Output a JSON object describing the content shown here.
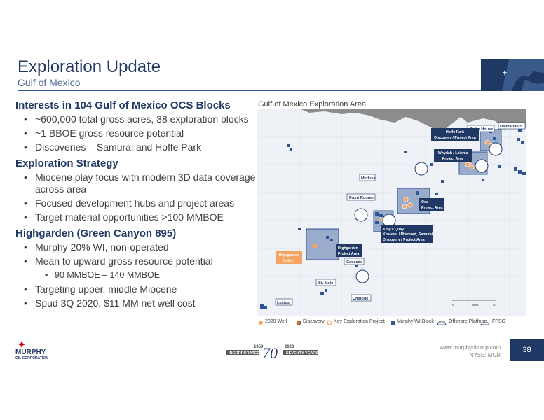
{
  "header": {
    "title": "Exploration Update",
    "subtitle": "Gulf of Mexico"
  },
  "sections": [
    {
      "heading": "Interests in 104 Gulf of Mexico OCS Blocks",
      "bullets": [
        "~600,000 total gross acres, 38 exploration blocks",
        "~1 BBOE gross resource potential",
        "Discoveries – Samurai and Hoffe Park"
      ]
    },
    {
      "heading": "Exploration Strategy",
      "bullets": [
        "Miocene play focus with modern 3D data coverage across area",
        "Focused development hubs and project areas",
        "Target material opportunities >100 MMBOE"
      ]
    },
    {
      "heading": "Highgarden (Green Canyon 895)",
      "bullets": [
        "Murphy 20% WI, non-operated",
        "Mean to upward gross resource potential",
        "Targeting upper, middle Miocene",
        "Spud 3Q 2020, $11 MM net well cost"
      ],
      "sub_bullet": "90 MMBOE – 140 MMBOE"
    }
  ],
  "map": {
    "title": "Gulf of Mexico Exploration Area",
    "labels": {
      "delta_house": "Delta House",
      "dalmatian": "Dalmatian S.",
      "hoffe": "Hoffe Park",
      "hoffe2": "Discovery / Project Area",
      "whydah": "Whydah / Leibniz",
      "whydah2": "Project Area",
      "medusa": "Medusa",
      "front_runner": "Front Runner",
      "oso": "Oso",
      "oso2": "Project Area",
      "kings_quay": "King's Quay",
      "kings2": "Khaleesi / Mormont, Samurai",
      "kings3": "Discovery / Project Area",
      "highgarden": "Highgarden",
      "highgarden2": "Project Area",
      "highgarden_well": "Highgarden",
      "highgarden_well2": "Drilling",
      "cascade": "Cascade",
      "st_malo": "St. Malo",
      "chinook": "Chinook",
      "lucius": "Lucius",
      "scale0": "0",
      "scale_unit": "Miles",
      "scale50": "50"
    }
  },
  "legend": {
    "well": "2020 Well",
    "discovery": "Discovery",
    "key_project": "Key Exploration Project",
    "wi_block": "Murphy WI Block",
    "platform": "Offshore Platform",
    "fpso": "FPSO"
  },
  "footer": {
    "company_line1": "MURPHY",
    "company_line2": "OIL CORPORATION",
    "year_founded": "1950",
    "year_now": "2020",
    "incorporated": "INCORPORATED",
    "seventy": "70",
    "seventy_years": "SEVENTY YEARS",
    "website": "www.murphyoilcorp.com",
    "ticker": "NYSE: MUR",
    "page": "38"
  },
  "colors": {
    "navy": "#1f3864",
    "orange": "#f4a460",
    "block_blue": "#2f5597"
  }
}
